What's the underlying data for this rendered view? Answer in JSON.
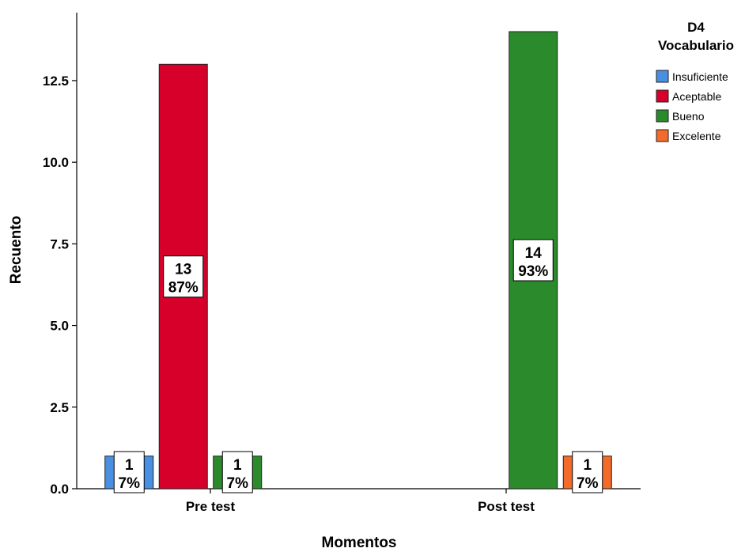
{
  "chart_data": {
    "type": "bar",
    "categories": [
      "Pre test",
      "Post test"
    ],
    "series": [
      {
        "name": "Insuficiente",
        "color": "#4a90e2",
        "values": [
          1,
          0
        ],
        "labels": [
          [
            "1",
            "7%"
          ],
          null
        ]
      },
      {
        "name": "Aceptable",
        "color": "#d6002a",
        "values": [
          13,
          0
        ],
        "labels": [
          [
            "13",
            "87%"
          ],
          null
        ]
      },
      {
        "name": "Bueno",
        "color": "#2b8a2b",
        "values": [
          1,
          14
        ],
        "labels": [
          [
            "1",
            "7%"
          ],
          [
            "14",
            "93%"
          ]
        ]
      },
      {
        "name": "Excelente",
        "color": "#f26b2a",
        "values": [
          0,
          1
        ],
        "labels": [
          null,
          [
            "1",
            "7%"
          ]
        ]
      }
    ],
    "xlabel": "Momentos",
    "ylabel": "Recuento",
    "ylim": [
      0,
      14
    ],
    "yticks": [
      "0.0",
      "2.5",
      "5.0",
      "7.5",
      "10.0",
      "12.5"
    ],
    "legend": {
      "title_line1": "D4",
      "title_line2": "Vocabulario",
      "placement": "top-right"
    },
    "grid": false
  }
}
